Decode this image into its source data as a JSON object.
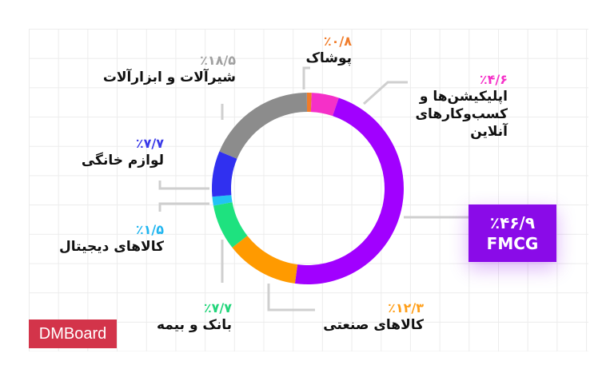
{
  "chart_data": {
    "type": "pie",
    "donut": true,
    "slices": [
      {
        "label": "پوشاک",
        "value": 0.8,
        "display": "٪۰/۸",
        "color": "#f07c2a"
      },
      {
        "label": "اپلیکیشن‌ها و کسب‌وکارهای آنلاین",
        "value": 4.6,
        "display": "٪۴/۶",
        "color": "#f530c8"
      },
      {
        "label": "FMCG",
        "value": 46.9,
        "display": "٪۴۶/۹",
        "color": "#a100ff"
      },
      {
        "label": "کالاهای صنعتی",
        "value": 12.3,
        "display": "٪۱۲/۳",
        "color": "#ff9a00"
      },
      {
        "label": "بانک و بیمه",
        "value": 7.7,
        "display": "٪۷/۷",
        "color": "#1ee27f"
      },
      {
        "label": "کالاهای دیجیتال",
        "value": 1.5,
        "display": "٪۱/۵",
        "color": "#22c3f5"
      },
      {
        "label": "لوازم خانگی",
        "value": 7.7,
        "display": "٪۷/۷",
        "color": "#3030f0"
      },
      {
        "label": "شیرآلات و ابزارآلات",
        "value": 18.5,
        "display": "٪۱۸/۵",
        "color": "#8c8c8c"
      }
    ]
  },
  "brand": {
    "logo_text": "DMBoard",
    "color": "#d3344a"
  }
}
